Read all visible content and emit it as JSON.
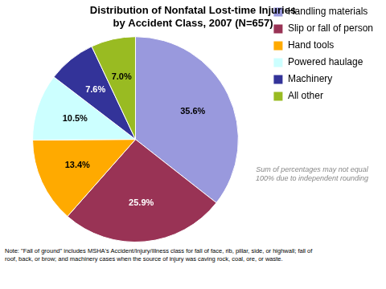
{
  "chart_data": {
    "type": "pie",
    "title": "Distribution of Nonfatal Lost-time Injuries\nby Accident Class, 2007 (N=657)",
    "categories": [
      "Handling materials",
      "Slip or fall of person",
      "Hand tools",
      "Powered haulage",
      "Machinery",
      "All other"
    ],
    "values": [
      35.6,
      25.9,
      13.4,
      10.5,
      7.6,
      7.0
    ],
    "value_labels": [
      "35.6%",
      "25.9%",
      "13.4%",
      "10.5%",
      "7.6%",
      "7.0%"
    ],
    "colors": [
      "#9999DD",
      "#993355",
      "#FFAA00",
      "#CCFFFF",
      "#333399",
      "#99BB22"
    ],
    "data_labels": true,
    "legend": "right",
    "annotations": [
      "Sum of percentages may not equal\n100% due to independent rounding",
      "Note: \"Fall of ground\" includes MSHA's Accident/Injury/Illness class for fall of face, rib, pillar, side, or highwall; fall of",
      "roof, back, or brow; and machinery cases when the source of injury was caving rock, coal, ore, or waste."
    ]
  }
}
